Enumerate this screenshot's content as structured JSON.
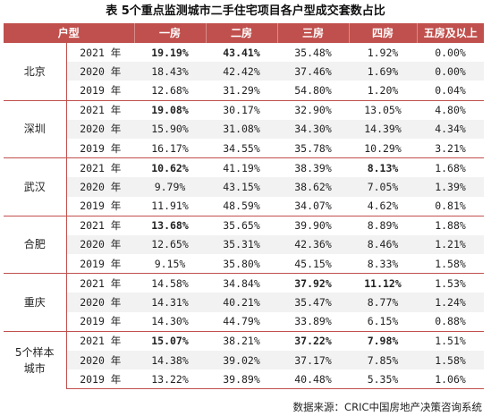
{
  "title": "表 5个重点监测城市二手住宅项目各户型成交套数占比",
  "headers": [
    "户型",
    "一房",
    "二房",
    "三房",
    "四房",
    "五房及以上"
  ],
  "groups": [
    {
      "city": "北京",
      "rows": [
        {
          "year": "2021 年",
          "values": [
            "19.19%",
            "43.41%",
            "35.48%",
            "1.92%",
            "0.00%"
          ],
          "hl": [
            true,
            true,
            false,
            false,
            false
          ]
        },
        {
          "year": "2020 年",
          "values": [
            "18.43%",
            "42.42%",
            "37.46%",
            "1.69%",
            "0.00%"
          ],
          "hl": [
            false,
            false,
            false,
            false,
            false
          ]
        },
        {
          "year": "2019 年",
          "values": [
            "12.68%",
            "31.29%",
            "54.80%",
            "1.20%",
            "0.04%"
          ],
          "hl": [
            false,
            false,
            false,
            false,
            false
          ]
        }
      ]
    },
    {
      "city": "深圳",
      "rows": [
        {
          "year": "2021 年",
          "values": [
            "19.08%",
            "30.17%",
            "32.90%",
            "13.05%",
            "4.80%"
          ],
          "hl": [
            true,
            false,
            false,
            false,
            false
          ]
        },
        {
          "year": "2020 年",
          "values": [
            "15.90%",
            "31.08%",
            "34.30%",
            "14.39%",
            "4.34%"
          ],
          "hl": [
            false,
            false,
            false,
            false,
            false
          ]
        },
        {
          "year": "2019 年",
          "values": [
            "16.17%",
            "34.55%",
            "35.78%",
            "10.29%",
            "3.21%"
          ],
          "hl": [
            false,
            false,
            false,
            false,
            false
          ]
        }
      ]
    },
    {
      "city": "武汉",
      "rows": [
        {
          "year": "2021 年",
          "values": [
            "10.62%",
            "41.19%",
            "38.39%",
            "8.13%",
            "1.68%"
          ],
          "hl": [
            true,
            false,
            false,
            true,
            false
          ]
        },
        {
          "year": "2020 年",
          "values": [
            "9.79%",
            "43.15%",
            "38.62%",
            "7.05%",
            "1.39%"
          ],
          "hl": [
            false,
            false,
            false,
            false,
            false
          ]
        },
        {
          "year": "2019 年",
          "values": [
            "11.91%",
            "48.59%",
            "34.07%",
            "4.62%",
            "0.81%"
          ],
          "hl": [
            false,
            false,
            false,
            false,
            false
          ]
        }
      ]
    },
    {
      "city": "合肥",
      "rows": [
        {
          "year": "2021 年",
          "values": [
            "13.68%",
            "35.65%",
            "39.90%",
            "8.89%",
            "1.88%"
          ],
          "hl": [
            true,
            false,
            false,
            false,
            false
          ]
        },
        {
          "year": "2020 年",
          "values": [
            "12.65%",
            "35.31%",
            "42.36%",
            "8.46%",
            "1.21%"
          ],
          "hl": [
            false,
            false,
            false,
            false,
            false
          ]
        },
        {
          "year": "2019 年",
          "values": [
            "9.15%",
            "35.80%",
            "45.15%",
            "8.33%",
            "1.58%"
          ],
          "hl": [
            false,
            false,
            false,
            false,
            false
          ]
        }
      ]
    },
    {
      "city": "重庆",
      "rows": [
        {
          "year": "2021 年",
          "values": [
            "14.58%",
            "34.84%",
            "37.92%",
            "11.12%",
            "1.53%"
          ],
          "hl": [
            false,
            false,
            true,
            true,
            false
          ]
        },
        {
          "year": "2020 年",
          "values": [
            "14.31%",
            "40.21%",
            "35.47%",
            "8.77%",
            "1.24%"
          ],
          "hl": [
            false,
            false,
            false,
            false,
            false
          ]
        },
        {
          "year": "2019 年",
          "values": [
            "14.30%",
            "44.79%",
            "33.89%",
            "6.15%",
            "0.88%"
          ],
          "hl": [
            false,
            false,
            false,
            false,
            false
          ]
        }
      ]
    },
    {
      "city": "5个样本城市",
      "rows": [
        {
          "year": "2021 年",
          "values": [
            "15.07%",
            "38.21%",
            "37.22%",
            "7.98%",
            "1.51%"
          ],
          "hl": [
            true,
            false,
            true,
            true,
            false
          ]
        },
        {
          "year": "2020 年",
          "values": [
            "14.38%",
            "39.02%",
            "37.17%",
            "7.85%",
            "1.58%"
          ],
          "hl": [
            false,
            false,
            false,
            false,
            false
          ]
        },
        {
          "year": "2019 年",
          "values": [
            "13.22%",
            "39.89%",
            "40.48%",
            "5.35%",
            "1.06%"
          ],
          "hl": [
            false,
            false,
            false,
            false,
            false
          ]
        }
      ]
    }
  ],
  "source": "数据来源：CRIC中国房地产决策咨询系统",
  "colors": {
    "header_bg": "#c0504d",
    "highlight": "#e02020",
    "alt_row": "#f2f2f2"
  }
}
